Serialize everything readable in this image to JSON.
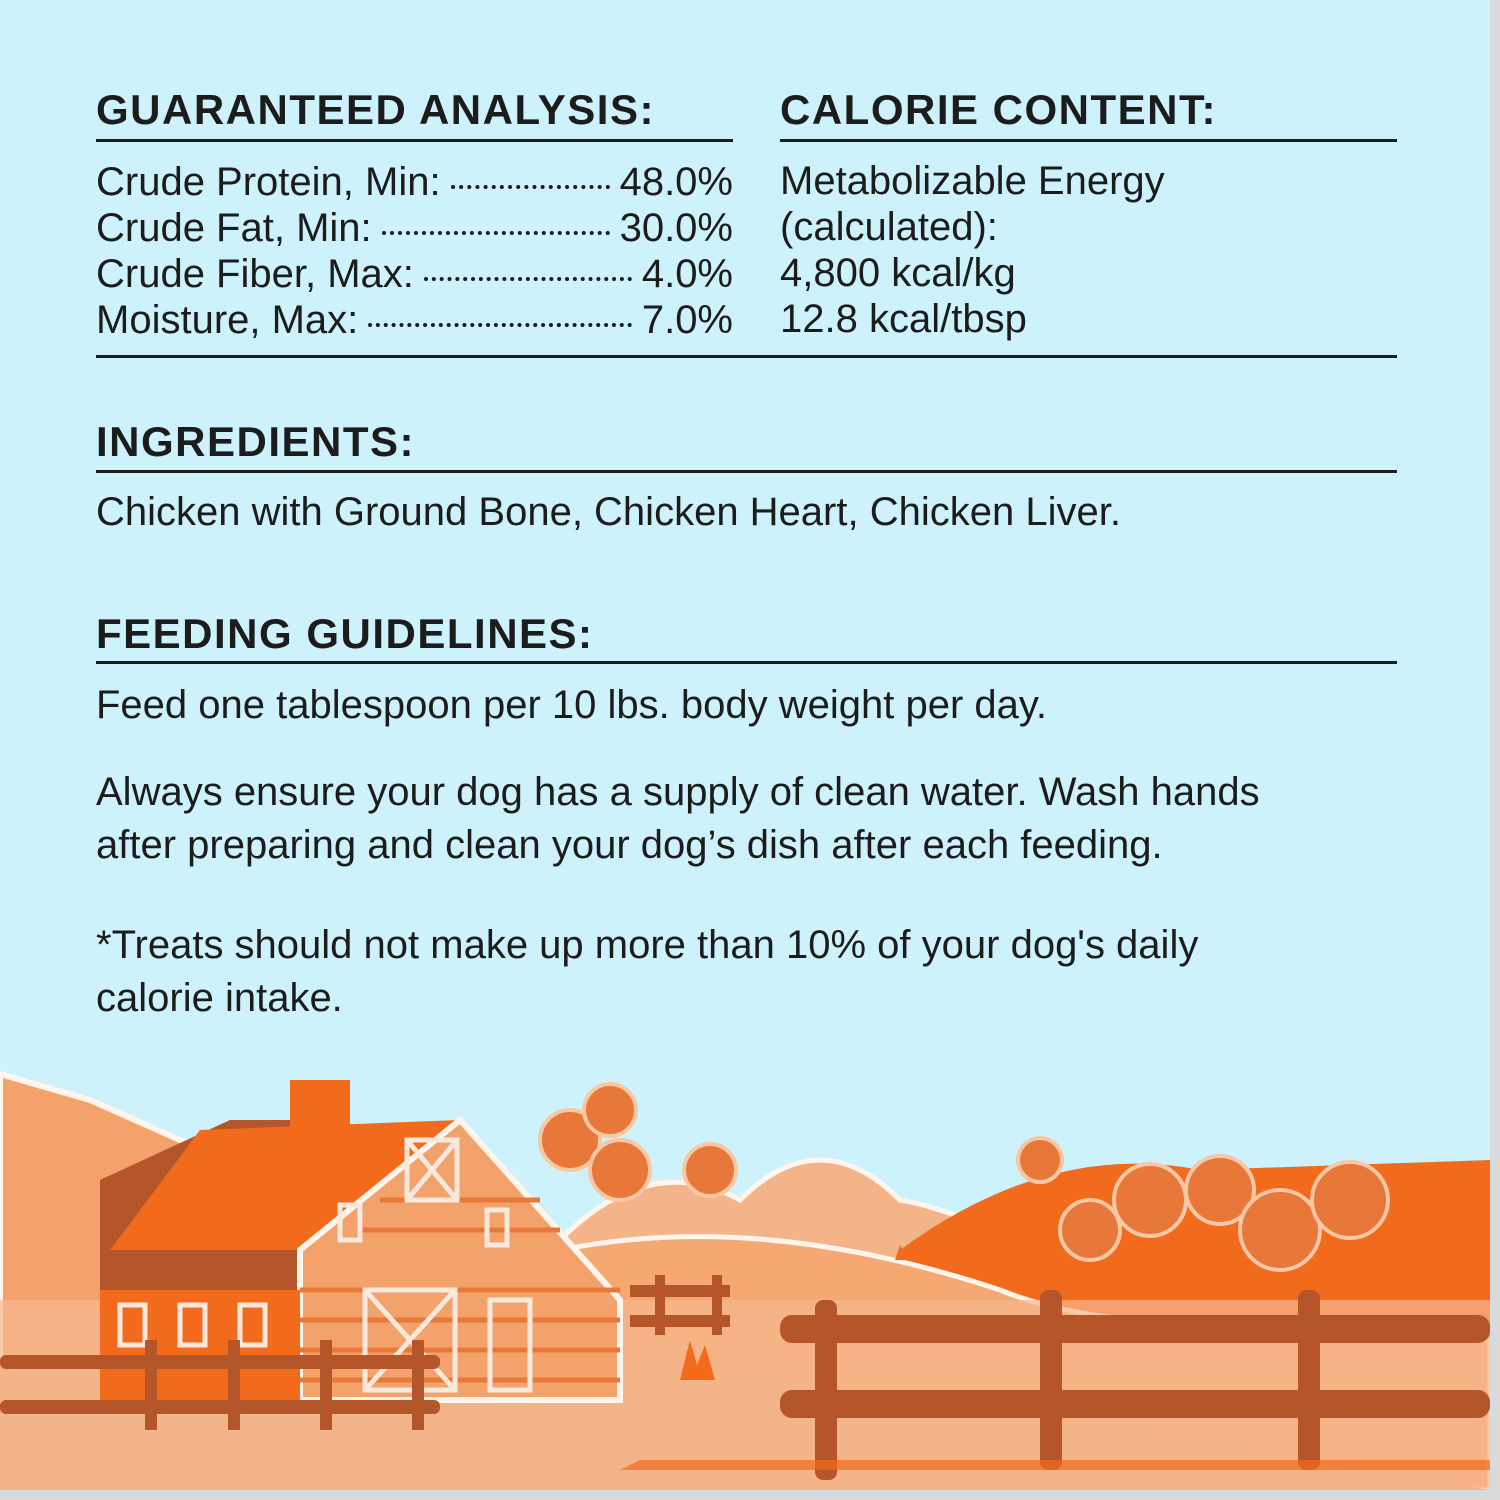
{
  "analysis": {
    "heading": "GUARANTEED ANALYSIS:",
    "rows": [
      {
        "label": "Crude Protein, Min:",
        "value": "48.0%"
      },
      {
        "label": "Crude Fat, Min:",
        "value": "30.0%"
      },
      {
        "label": "Crude Fiber, Max:",
        "value": "4.0%"
      },
      {
        "label": "Moisture, Max:",
        "value": "7.0%"
      }
    ]
  },
  "calorie": {
    "heading": "CALORIE CONTENT:",
    "lines": [
      "Metabolizable Energy",
      "(calculated):",
      "4,800 kcal/kg",
      "12.8 kcal/tbsp"
    ]
  },
  "ingredients": {
    "heading": "INGREDIENTS:",
    "text": "Chicken with Ground Bone, Chicken Heart, Chicken Liver."
  },
  "feeding": {
    "heading": "FEEDING GUIDELINES:",
    "text1": "Feed one tablespoon per 10 lbs. body weight per day.",
    "text2_line1": "Always ensure your dog has a supply of clean water. Wash hands",
    "text2_line2": "after preparing and clean your dog’s dish after each feeding.",
    "text3_line1": "*Treats should not make up more than 10% of your dog's daily",
    "text3_line2": "calorie intake."
  },
  "colors": {
    "background": "#cdf2fb",
    "orange": "#f26a1b",
    "brown": "#b4552a",
    "peach": "#f4b489"
  }
}
